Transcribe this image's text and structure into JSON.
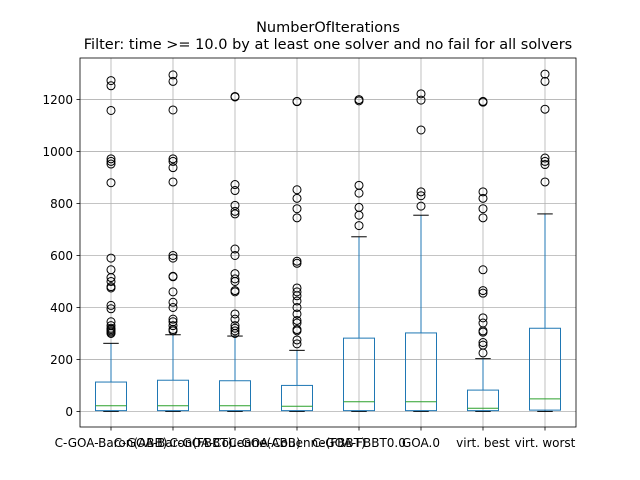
{
  "chart_data": {
    "type": "boxplot",
    "title": "NumberOfIterations",
    "subtitle": "Filter: time >= 10.0 by at least one solver and no fail for all solvers",
    "xlabel": "",
    "ylabel": "",
    "ylim": [
      -60,
      1360
    ],
    "yticks": [
      0,
      200,
      400,
      600,
      800,
      1000,
      1200
    ],
    "grid": true,
    "categories": [
      "C-GOA-Baron(ABB)",
      "C-GOA-Baron(FBBT)",
      "C-GOA-Couenne(ABB)",
      "C-GOA-Couenne(FBBT)",
      "C-GOA-FBBT0.0",
      "GOA.0",
      "virt. best",
      "virt. worst"
    ],
    "tick_labels": [
      "C-GOA-Baron(ABB)",
      "C-GOA-Baron(FBBT)",
      "C-GOA-Couenne(ABB)",
      "C-GOA-Couenne(FBBT)",
      "C-GOA-FBBT0.0",
      "GOA.0",
      "virt. best",
      "virt. worst"
    ],
    "boxes": [
      {
        "whislo": 0,
        "q1": 3,
        "med": 22,
        "q3": 113,
        "whishi": 262,
        "fliers": [
          1273,
          1253,
          1158,
          972,
          962,
          952,
          880,
          590,
          545,
          515,
          500,
          480,
          475,
          408,
          395,
          345,
          330,
          320,
          315,
          310,
          305,
          300
        ]
      },
      {
        "whislo": 0,
        "q1": 3,
        "med": 22,
        "q3": 120,
        "whishi": 295,
        "fliers": [
          1295,
          1270,
          1160,
          972,
          962,
          938,
          883,
          600,
          590,
          520,
          518,
          460,
          420,
          400,
          355,
          345,
          330,
          315,
          310
        ]
      },
      {
        "whislo": 0,
        "q1": 3,
        "med": 22,
        "q3": 118,
        "whishi": 290,
        "fliers": [
          1212,
          1210,
          873,
          850,
          793,
          770,
          760,
          625,
          600,
          530,
          510,
          500,
          465,
          460,
          375,
          355,
          330,
          320,
          310,
          300
        ]
      },
      {
        "whislo": 0,
        "q1": 3,
        "med": 20,
        "q3": 100,
        "whishi": 235,
        "fliers": [
          1193,
          1192,
          853,
          820,
          780,
          745,
          578,
          570,
          475,
          460,
          445,
          425,
          400,
          375,
          350,
          340,
          315,
          310,
          275,
          260
        ]
      },
      {
        "whislo": 0,
        "q1": 3,
        "med": 37,
        "q3": 282,
        "whishi": 672,
        "fliers": [
          1200,
          1195,
          870,
          840,
          785,
          755,
          715
        ]
      },
      {
        "whislo": 0,
        "q1": 3,
        "med": 37,
        "q3": 302,
        "whishi": 755,
        "fliers": [
          1222,
          1198,
          1083,
          845,
          830,
          790
        ]
      },
      {
        "whislo": 0,
        "q1": 3,
        "med": 12,
        "q3": 82,
        "whishi": 203,
        "fliers": [
          1193,
          1190,
          845,
          820,
          780,
          745,
          545,
          465,
          455,
          360,
          340,
          310,
          305,
          265,
          255,
          225
        ]
      },
      {
        "whislo": 0,
        "q1": 5,
        "med": 48,
        "q3": 320,
        "whishi": 760,
        "fliers": [
          1298,
          1270,
          1163,
          975,
          962,
          950,
          883
        ]
      }
    ]
  }
}
